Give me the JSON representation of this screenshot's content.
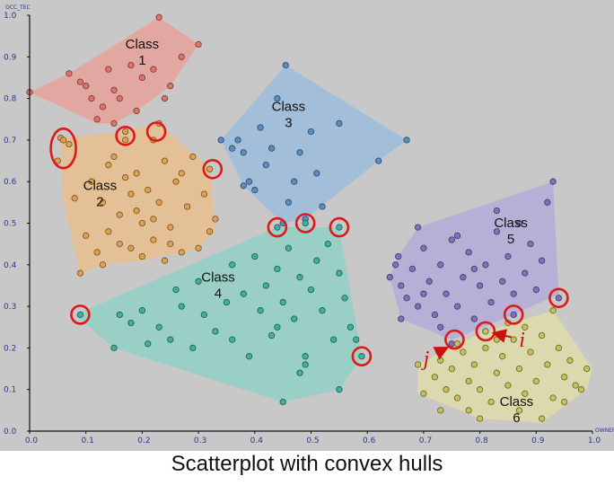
{
  "caption": "Scatterplot with convex hulls",
  "chart_data": {
    "type": "scatter",
    "title": "",
    "xlabel": "OWNER",
    "ylabel": "OCC_TEC",
    "xlim": [
      0.0,
      1.0
    ],
    "ylim": [
      0.0,
      1.0
    ],
    "x_ticks": [
      "0.0",
      "0.1",
      "0.2",
      "0.3",
      "0.4",
      "0.5",
      "0.6",
      "0.7",
      "0.8",
      "0.9",
      "1.0"
    ],
    "y_ticks": [
      "0.0",
      "0.1",
      "0.2",
      "0.3",
      "0.4",
      "0.5",
      "0.6",
      "0.7",
      "0.8",
      "0.9",
      "1.0"
    ],
    "grid": false,
    "background": "#c8c8c8",
    "series": [
      {
        "name": "Class 1",
        "label_lines": [
          "Class",
          "1"
        ],
        "label_pos": [
          0.2,
          0.92
        ],
        "color": "#e07368",
        "hull_fill": "#e8a19a",
        "hull": [
          [
            0.0,
            0.815
          ],
          [
            0.07,
            0.86
          ],
          [
            0.23,
            0.995
          ],
          [
            0.3,
            0.93
          ],
          [
            0.25,
            0.83
          ],
          [
            0.19,
            0.77
          ],
          [
            0.15,
            0.74
          ],
          [
            0.12,
            0.74
          ],
          [
            0.0,
            0.815
          ]
        ],
        "points": [
          [
            0.0,
            0.815
          ],
          [
            0.07,
            0.86
          ],
          [
            0.09,
            0.84
          ],
          [
            0.1,
            0.83
          ],
          [
            0.14,
            0.87
          ],
          [
            0.15,
            0.82
          ],
          [
            0.18,
            0.88
          ],
          [
            0.2,
            0.85
          ],
          [
            0.22,
            0.87
          ],
          [
            0.23,
            0.995
          ],
          [
            0.24,
            0.8
          ],
          [
            0.25,
            0.83
          ],
          [
            0.27,
            0.9
          ],
          [
            0.3,
            0.93
          ],
          [
            0.16,
            0.8
          ],
          [
            0.13,
            0.78
          ],
          [
            0.12,
            0.75
          ],
          [
            0.19,
            0.77
          ],
          [
            0.15,
            0.74
          ],
          [
            0.11,
            0.8
          ]
        ]
      },
      {
        "name": "Class 2",
        "label_lines": [
          "Class",
          "2"
        ],
        "label_pos": [
          0.125,
          0.58
        ],
        "color": "#e0a050",
        "hull_fill": "#e8be8c",
        "hull": [
          [
            0.055,
            0.705
          ],
          [
            0.17,
            0.72
          ],
          [
            0.23,
            0.74
          ],
          [
            0.32,
            0.63
          ],
          [
            0.33,
            0.48
          ],
          [
            0.3,
            0.44
          ],
          [
            0.2,
            0.41
          ],
          [
            0.13,
            0.4
          ],
          [
            0.09,
            0.38
          ],
          [
            0.06,
            0.55
          ],
          [
            0.055,
            0.705
          ]
        ],
        "points": [
          [
            0.055,
            0.705
          ],
          [
            0.06,
            0.7
          ],
          [
            0.05,
            0.65
          ],
          [
            0.07,
            0.69
          ],
          [
            0.17,
            0.72
          ],
          [
            0.17,
            0.7
          ],
          [
            0.22,
            0.7
          ],
          [
            0.23,
            0.74
          ],
          [
            0.32,
            0.63
          ],
          [
            0.09,
            0.38
          ],
          [
            0.11,
            0.6
          ],
          [
            0.13,
            0.55
          ],
          [
            0.14,
            0.48
          ],
          [
            0.15,
            0.66
          ],
          [
            0.16,
            0.52
          ],
          [
            0.18,
            0.57
          ],
          [
            0.18,
            0.44
          ],
          [
            0.19,
            0.62
          ],
          [
            0.2,
            0.5
          ],
          [
            0.2,
            0.42
          ],
          [
            0.21,
            0.58
          ],
          [
            0.22,
            0.46
          ],
          [
            0.23,
            0.55
          ],
          [
            0.24,
            0.65
          ],
          [
            0.24,
            0.41
          ],
          [
            0.25,
            0.49
          ],
          [
            0.26,
            0.6
          ],
          [
            0.27,
            0.43
          ],
          [
            0.28,
            0.54
          ],
          [
            0.29,
            0.66
          ],
          [
            0.3,
            0.44
          ],
          [
            0.31,
            0.57
          ],
          [
            0.32,
            0.48
          ],
          [
            0.33,
            0.51
          ],
          [
            0.1,
            0.47
          ],
          [
            0.12,
            0.43
          ],
          [
            0.14,
            0.64
          ],
          [
            0.16,
            0.45
          ],
          [
            0.08,
            0.56
          ],
          [
            0.13,
            0.4
          ],
          [
            0.17,
            0.61
          ],
          [
            0.22,
            0.51
          ],
          [
            0.27,
            0.62
          ],
          [
            0.25,
            0.45
          ],
          [
            0.19,
            0.53
          ]
        ]
      },
      {
        "name": "Class 3",
        "label_lines": [
          "Class",
          "3"
        ],
        "label_pos": [
          0.46,
          0.77
        ],
        "color": "#5b8ec0",
        "hull_fill": "#9cbcdc",
        "hull": [
          [
            0.455,
            0.88
          ],
          [
            0.67,
            0.7
          ],
          [
            0.62,
            0.65
          ],
          [
            0.49,
            0.51
          ],
          [
            0.45,
            0.5
          ],
          [
            0.38,
            0.59
          ],
          [
            0.34,
            0.7
          ],
          [
            0.455,
            0.88
          ]
        ],
        "points": [
          [
            0.455,
            0.88
          ],
          [
            0.67,
            0.7
          ],
          [
            0.62,
            0.65
          ],
          [
            0.49,
            0.51
          ],
          [
            0.45,
            0.5
          ],
          [
            0.34,
            0.7
          ],
          [
            0.37,
            0.7
          ],
          [
            0.38,
            0.67
          ],
          [
            0.39,
            0.6
          ],
          [
            0.4,
            0.58
          ],
          [
            0.41,
            0.73
          ],
          [
            0.43,
            0.68
          ],
          [
            0.44,
            0.8
          ],
          [
            0.48,
            0.67
          ],
          [
            0.5,
            0.72
          ],
          [
            0.51,
            0.62
          ],
          [
            0.55,
            0.74
          ],
          [
            0.52,
            0.54
          ],
          [
            0.46,
            0.55
          ],
          [
            0.38,
            0.59
          ],
          [
            0.42,
            0.64
          ],
          [
            0.47,
            0.6
          ],
          [
            0.36,
            0.68
          ]
        ]
      },
      {
        "name": "Class 4",
        "label_lines": [
          "Class",
          "4"
        ],
        "label_pos": [
          0.335,
          0.36
        ],
        "color": "#40b0a0",
        "hull_fill": "#90d0c4",
        "hull": [
          [
            0.08,
            0.28
          ],
          [
            0.44,
            0.49
          ],
          [
            0.55,
            0.49
          ],
          [
            0.59,
            0.18
          ],
          [
            0.55,
            0.1
          ],
          [
            0.45,
            0.07
          ],
          [
            0.15,
            0.2
          ],
          [
            0.08,
            0.28
          ]
        ],
        "points": [
          [
            0.09,
            0.28
          ],
          [
            0.44,
            0.49
          ],
          [
            0.49,
            0.5
          ],
          [
            0.55,
            0.49
          ],
          [
            0.59,
            0.18
          ],
          [
            0.55,
            0.1
          ],
          [
            0.45,
            0.07
          ],
          [
            0.15,
            0.2
          ],
          [
            0.16,
            0.28
          ],
          [
            0.18,
            0.26
          ],
          [
            0.2,
            0.29
          ],
          [
            0.21,
            0.21
          ],
          [
            0.23,
            0.25
          ],
          [
            0.25,
            0.22
          ],
          [
            0.27,
            0.3
          ],
          [
            0.29,
            0.2
          ],
          [
            0.31,
            0.28
          ],
          [
            0.33,
            0.24
          ],
          [
            0.35,
            0.31
          ],
          [
            0.36,
            0.22
          ],
          [
            0.38,
            0.33
          ],
          [
            0.39,
            0.18
          ],
          [
            0.41,
            0.29
          ],
          [
            0.42,
            0.35
          ],
          [
            0.43,
            0.23
          ],
          [
            0.44,
            0.39
          ],
          [
            0.45,
            0.31
          ],
          [
            0.46,
            0.44
          ],
          [
            0.47,
            0.27
          ],
          [
            0.48,
            0.37
          ],
          [
            0.49,
            0.18
          ],
          [
            0.5,
            0.34
          ],
          [
            0.51,
            0.41
          ],
          [
            0.52,
            0.29
          ],
          [
            0.53,
            0.45
          ],
          [
            0.54,
            0.22
          ],
          [
            0.55,
            0.38
          ],
          [
            0.56,
            0.32
          ],
          [
            0.57,
            0.25
          ],
          [
            0.58,
            0.22
          ],
          [
            0.48,
            0.14
          ],
          [
            0.49,
            0.16
          ],
          [
            0.36,
            0.4
          ],
          [
            0.4,
            0.42
          ],
          [
            0.44,
            0.25
          ],
          [
            0.3,
            0.36
          ],
          [
            0.26,
            0.34
          ]
        ]
      },
      {
        "name": "Class 5",
        "label_lines": [
          "Class",
          "5"
        ],
        "label_pos": [
          0.855,
          0.49
        ],
        "color": "#7f72bc",
        "hull_fill": "#b3aad8",
        "hull": [
          [
            0.655,
            0.42
          ],
          [
            0.69,
            0.49
          ],
          [
            0.93,
            0.6
          ],
          [
            0.94,
            0.33
          ],
          [
            0.86,
            0.28
          ],
          [
            0.75,
            0.22
          ],
          [
            0.66,
            0.27
          ],
          [
            0.64,
            0.37
          ],
          [
            0.655,
            0.42
          ]
        ],
        "points": [
          [
            0.655,
            0.42
          ],
          [
            0.69,
            0.49
          ],
          [
            0.93,
            0.6
          ],
          [
            0.94,
            0.32
          ],
          [
            0.86,
            0.28
          ],
          [
            0.81,
            0.24
          ],
          [
            0.75,
            0.21
          ],
          [
            0.66,
            0.27
          ],
          [
            0.64,
            0.37
          ],
          [
            0.66,
            0.35
          ],
          [
            0.67,
            0.32
          ],
          [
            0.68,
            0.39
          ],
          [
            0.69,
            0.3
          ],
          [
            0.7,
            0.44
          ],
          [
            0.71,
            0.36
          ],
          [
            0.72,
            0.28
          ],
          [
            0.73,
            0.4
          ],
          [
            0.74,
            0.33
          ],
          [
            0.75,
            0.46
          ],
          [
            0.76,
            0.3
          ],
          [
            0.77,
            0.37
          ],
          [
            0.78,
            0.43
          ],
          [
            0.79,
            0.27
          ],
          [
            0.8,
            0.35
          ],
          [
            0.81,
            0.4
          ],
          [
            0.82,
            0.31
          ],
          [
            0.83,
            0.48
          ],
          [
            0.84,
            0.36
          ],
          [
            0.85,
            0.42
          ],
          [
            0.86,
            0.33
          ],
          [
            0.87,
            0.5
          ],
          [
            0.88,
            0.38
          ],
          [
            0.89,
            0.45
          ],
          [
            0.9,
            0.34
          ],
          [
            0.91,
            0.41
          ],
          [
            0.92,
            0.55
          ],
          [
            0.83,
            0.53
          ],
          [
            0.73,
            0.25
          ],
          [
            0.76,
            0.47
          ],
          [
            0.7,
            0.33
          ],
          [
            0.65,
            0.4
          ],
          [
            0.79,
            0.39
          ]
        ]
      },
      {
        "name": "Class 6",
        "label_lines": [
          "Class",
          "6"
        ],
        "label_pos": [
          0.865,
          0.06
        ],
        "color": "#c8c05a",
        "hull_fill": "#dedca8",
        "hull": [
          [
            0.69,
            0.16
          ],
          [
            0.76,
            0.21
          ],
          [
            0.81,
            0.24
          ],
          [
            0.93,
            0.29
          ],
          [
            1.0,
            0.15
          ],
          [
            0.99,
            0.1
          ],
          [
            0.91,
            0.02
          ],
          [
            0.8,
            0.03
          ],
          [
            0.69,
            0.09
          ],
          [
            0.69,
            0.16
          ]
        ],
        "points": [
          [
            0.69,
            0.16
          ],
          [
            0.76,
            0.21
          ],
          [
            0.81,
            0.24
          ],
          [
            0.93,
            0.29
          ],
          [
            0.99,
            0.15
          ],
          [
            0.98,
            0.1
          ],
          [
            0.91,
            0.03
          ],
          [
            0.8,
            0.03
          ],
          [
            0.7,
            0.09
          ],
          [
            0.72,
            0.13
          ],
          [
            0.73,
            0.17
          ],
          [
            0.74,
            0.1
          ],
          [
            0.75,
            0.15
          ],
          [
            0.76,
            0.08
          ],
          [
            0.77,
            0.19
          ],
          [
            0.78,
            0.12
          ],
          [
            0.79,
            0.16
          ],
          [
            0.8,
            0.1
          ],
          [
            0.81,
            0.2
          ],
          [
            0.82,
            0.07
          ],
          [
            0.83,
            0.14
          ],
          [
            0.84,
            0.18
          ],
          [
            0.85,
            0.11
          ],
          [
            0.86,
            0.22
          ],
          [
            0.87,
            0.15
          ],
          [
            0.88,
            0.09
          ],
          [
            0.89,
            0.19
          ],
          [
            0.9,
            0.12
          ],
          [
            0.91,
            0.23
          ],
          [
            0.92,
            0.16
          ],
          [
            0.93,
            0.08
          ],
          [
            0.94,
            0.2
          ],
          [
            0.95,
            0.13
          ],
          [
            0.96,
            0.17
          ],
          [
            0.97,
            0.11
          ],
          [
            0.85,
            0.26
          ],
          [
            0.88,
            0.25
          ],
          [
            0.83,
            0.22
          ],
          [
            0.78,
            0.05
          ],
          [
            0.95,
            0.07
          ],
          [
            0.87,
            0.05
          ],
          [
            0.73,
            0.05
          ]
        ]
      }
    ],
    "highlighted_points": [
      [
        0.06,
        0.68
      ],
      [
        0.17,
        0.71
      ],
      [
        0.225,
        0.72
      ],
      [
        0.325,
        0.63
      ],
      [
        0.44,
        0.49
      ],
      [
        0.49,
        0.5
      ],
      [
        0.55,
        0.49
      ],
      [
        0.09,
        0.28
      ],
      [
        0.59,
        0.18
      ],
      [
        0.755,
        0.22
      ],
      [
        0.81,
        0.24
      ],
      [
        0.86,
        0.28
      ],
      [
        0.94,
        0.32
      ]
    ],
    "highlight_color": "#e01818",
    "annotations": [
      {
        "text": "i",
        "point": [
          0.81,
          0.24
        ],
        "label_at": [
          0.875,
          0.22
        ],
        "color": "#cc1111"
      },
      {
        "text": "j",
        "point": [
          0.755,
          0.21
        ],
        "label_at": [
          0.705,
          0.175
        ],
        "color": "#cc1111"
      }
    ]
  }
}
